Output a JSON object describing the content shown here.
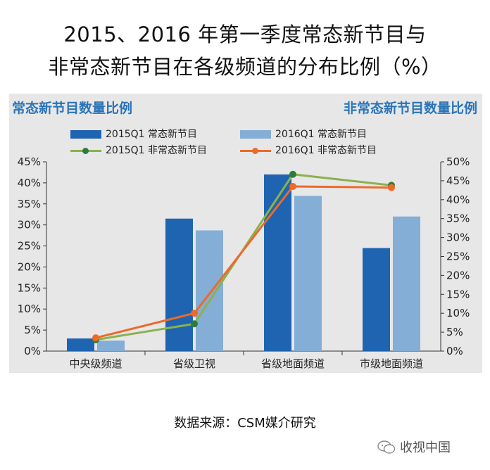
{
  "title": {
    "line1": "2015、2016 年第一季度常态新节目与",
    "line2": "非常态新节目在各级频道的分布比例（%）"
  },
  "left_axis_title": "常态新节目数量比例",
  "right_axis_title": "非常态新节目数量比例",
  "source": "数据来源：CSM媒介研究",
  "watermark": "收视中国",
  "colors": {
    "bar2015": "#1f64b0",
    "bar2016": "#84aed6",
    "line2015": "#8ab24f",
    "line2016": "#ec6a2a",
    "dot2015": "#2d7c3a",
    "title_blue": "#2a74b8"
  },
  "chart_data": {
    "type": "bar",
    "categories": [
      "中央级频道",
      "省级卫视",
      "省级地面频道",
      "市级地面频道"
    ],
    "series": [
      {
        "name": "2015Q1 常态新节目",
        "kind": "bar",
        "axis": "left",
        "values": [
          3,
          31.5,
          42,
          24.5
        ]
      },
      {
        "name": "2016Q1 常态新节目",
        "kind": "bar",
        "axis": "left",
        "values": [
          2.5,
          28.7,
          36.9,
          32
        ]
      },
      {
        "name": "2015Q1 非常态新节目",
        "kind": "line",
        "axis": "right",
        "values": [
          3,
          7.2,
          46.7,
          43.8
        ]
      },
      {
        "name": "2016Q1 非常态新节目",
        "kind": "line",
        "axis": "right",
        "values": [
          3.5,
          10,
          43.5,
          43.2
        ]
      }
    ],
    "y_left": {
      "min": 0,
      "max": 45,
      "step": 5,
      "ticks": [
        "0%",
        "5%",
        "10%",
        "15%",
        "20%",
        "25%",
        "30%",
        "35%",
        "40%",
        "45%"
      ]
    },
    "y_right": {
      "min": 0,
      "max": 50,
      "step": 5,
      "ticks": [
        "0%",
        "5%",
        "10%",
        "15%",
        "20%",
        "25%",
        "30%",
        "35%",
        "40%",
        "45%",
        "50%"
      ]
    },
    "grid": false,
    "legend_position": "top"
  }
}
